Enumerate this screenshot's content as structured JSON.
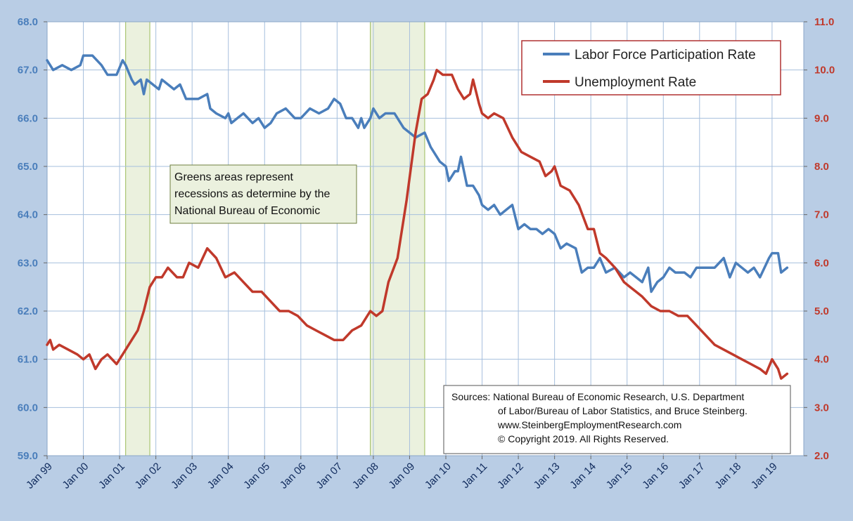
{
  "chart_data": {
    "type": "line",
    "y_left": {
      "min": 59,
      "max": 68,
      "ticks": [
        "59.0",
        "60.0",
        "61.0",
        "62.0",
        "63.0",
        "64.0",
        "65.0",
        "66.0",
        "67.0",
        "68.0"
      ],
      "color": "#4a7ebb"
    },
    "y_right": {
      "min": 2,
      "max": 11,
      "ticks": [
        "2.0",
        "3.0",
        "4.0",
        "5.0",
        "6.0",
        "7.0",
        "8.0",
        "9.0",
        "10.0",
        "11.0"
      ],
      "color": "#c0392b"
    },
    "x_ticks": [
      "Jan 99",
      "Jan 00",
      "Jan 01",
      "Jan 02",
      "Jan 03",
      "Jan 04",
      "Jan 05",
      "Jan 06",
      "Jan 07",
      "Jan 08",
      "Jan 09",
      "Jan 10",
      "Jan 11",
      "Jan 12",
      "Jan 13",
      "Jan 14",
      "Jan 15",
      "Jan 16",
      "Jan 17",
      "Jan 18",
      "Jan 19"
    ],
    "grid": true,
    "recessions": [
      {
        "start": "2001-03",
        "end": "2001-11"
      },
      {
        "start": "2007-12",
        "end": "2009-06"
      }
    ],
    "series": [
      {
        "name": "Labor Force Participation Rate",
        "axis": "left",
        "color": "#4a7ebb",
        "points": [
          [
            "1999-01",
            67.2
          ],
          [
            "1999-03",
            67.0
          ],
          [
            "1999-06",
            67.1
          ],
          [
            "1999-09",
            67.0
          ],
          [
            "1999-12",
            67.1
          ],
          [
            "2000-01",
            67.3
          ],
          [
            "2000-04",
            67.3
          ],
          [
            "2000-07",
            67.1
          ],
          [
            "2000-09",
            66.9
          ],
          [
            "2000-12",
            66.9
          ],
          [
            "2001-02",
            67.2
          ],
          [
            "2001-03",
            67.1
          ],
          [
            "2001-05",
            66.8
          ],
          [
            "2001-06",
            66.7
          ],
          [
            "2001-08",
            66.8
          ],
          [
            "2001-09",
            66.5
          ],
          [
            "2001-10",
            66.8
          ],
          [
            "2001-12",
            66.7
          ],
          [
            "2002-02",
            66.6
          ],
          [
            "2002-03",
            66.8
          ],
          [
            "2002-05",
            66.7
          ],
          [
            "2002-07",
            66.6
          ],
          [
            "2002-09",
            66.7
          ],
          [
            "2002-11",
            66.4
          ],
          [
            "2003-01",
            66.4
          ],
          [
            "2003-03",
            66.4
          ],
          [
            "2003-06",
            66.5
          ],
          [
            "2003-07",
            66.2
          ],
          [
            "2003-09",
            66.1
          ],
          [
            "2003-12",
            66.0
          ],
          [
            "2004-01",
            66.1
          ],
          [
            "2004-02",
            65.9
          ],
          [
            "2004-04",
            66.0
          ],
          [
            "2004-06",
            66.1
          ],
          [
            "2004-09",
            65.9
          ],
          [
            "2004-11",
            66.0
          ],
          [
            "2005-01",
            65.8
          ],
          [
            "2005-03",
            65.9
          ],
          [
            "2005-05",
            66.1
          ],
          [
            "2005-08",
            66.2
          ],
          [
            "2005-11",
            66.0
          ],
          [
            "2006-01",
            66.0
          ],
          [
            "2006-04",
            66.2
          ],
          [
            "2006-07",
            66.1
          ],
          [
            "2006-10",
            66.2
          ],
          [
            "2006-12",
            66.4
          ],
          [
            "2007-02",
            66.3
          ],
          [
            "2007-04",
            66.0
          ],
          [
            "2007-06",
            66.0
          ],
          [
            "2007-08",
            65.8
          ],
          [
            "2007-09",
            66.0
          ],
          [
            "2007-10",
            65.8
          ],
          [
            "2007-12",
            66.0
          ],
          [
            "2008-01",
            66.2
          ],
          [
            "2008-03",
            66.0
          ],
          [
            "2008-05",
            66.1
          ],
          [
            "2008-08",
            66.1
          ],
          [
            "2008-11",
            65.8
          ],
          [
            "2009-01",
            65.7
          ],
          [
            "2009-03",
            65.6
          ],
          [
            "2009-06",
            65.7
          ],
          [
            "2009-08",
            65.4
          ],
          [
            "2009-11",
            65.1
          ],
          [
            "2010-01",
            65.0
          ],
          [
            "2010-02",
            64.7
          ],
          [
            "2010-04",
            64.9
          ],
          [
            "2010-05",
            64.9
          ],
          [
            "2010-06",
            65.2
          ],
          [
            "2010-08",
            64.6
          ],
          [
            "2010-10",
            64.6
          ],
          [
            "2010-12",
            64.4
          ],
          [
            "2011-01",
            64.2
          ],
          [
            "2011-03",
            64.1
          ],
          [
            "2011-05",
            64.2
          ],
          [
            "2011-07",
            64.0
          ],
          [
            "2011-09",
            64.1
          ],
          [
            "2011-11",
            64.2
          ],
          [
            "2012-01",
            63.7
          ],
          [
            "2012-03",
            63.8
          ],
          [
            "2012-05",
            63.7
          ],
          [
            "2012-07",
            63.7
          ],
          [
            "2012-09",
            63.6
          ],
          [
            "2012-11",
            63.7
          ],
          [
            "2013-01",
            63.6
          ],
          [
            "2013-03",
            63.3
          ],
          [
            "2013-05",
            63.4
          ],
          [
            "2013-08",
            63.3
          ],
          [
            "2013-10",
            62.8
          ],
          [
            "2013-12",
            62.9
          ],
          [
            "2014-02",
            62.9
          ],
          [
            "2014-04",
            63.1
          ],
          [
            "2014-06",
            62.8
          ],
          [
            "2014-09",
            62.9
          ],
          [
            "2014-12",
            62.7
          ],
          [
            "2015-02",
            62.8
          ],
          [
            "2015-04",
            62.7
          ],
          [
            "2015-06",
            62.6
          ],
          [
            "2015-08",
            62.9
          ],
          [
            "2015-09",
            62.4
          ],
          [
            "2015-11",
            62.6
          ],
          [
            "2016-01",
            62.7
          ],
          [
            "2016-03",
            62.9
          ],
          [
            "2016-05",
            62.8
          ],
          [
            "2016-08",
            62.8
          ],
          [
            "2016-10",
            62.7
          ],
          [
            "2016-12",
            62.9
          ],
          [
            "2017-03",
            62.9
          ],
          [
            "2017-06",
            62.9
          ],
          [
            "2017-09",
            63.1
          ],
          [
            "2017-11",
            62.7
          ],
          [
            "2018-01",
            63.0
          ],
          [
            "2018-03",
            62.9
          ],
          [
            "2018-05",
            62.8
          ],
          [
            "2018-07",
            62.9
          ],
          [
            "2018-09",
            62.7
          ],
          [
            "2018-12",
            63.1
          ],
          [
            "2019-01",
            63.2
          ],
          [
            "2019-03",
            63.2
          ],
          [
            "2019-04",
            62.8
          ],
          [
            "2019-06",
            62.9
          ]
        ]
      },
      {
        "name": "Unemployment Rate",
        "axis": "right",
        "color": "#c0392b",
        "points": [
          [
            "1999-01",
            4.3
          ],
          [
            "1999-02",
            4.4
          ],
          [
            "1999-03",
            4.2
          ],
          [
            "1999-05",
            4.3
          ],
          [
            "1999-08",
            4.2
          ],
          [
            "1999-11",
            4.1
          ],
          [
            "2000-01",
            4.0
          ],
          [
            "2000-03",
            4.1
          ],
          [
            "2000-05",
            3.8
          ],
          [
            "2000-07",
            4.0
          ],
          [
            "2000-09",
            4.1
          ],
          [
            "2000-12",
            3.9
          ],
          [
            "2001-03",
            4.2
          ],
          [
            "2001-05",
            4.4
          ],
          [
            "2001-07",
            4.6
          ],
          [
            "2001-09",
            5.0
          ],
          [
            "2001-11",
            5.5
          ],
          [
            "2002-01",
            5.7
          ],
          [
            "2002-03",
            5.7
          ],
          [
            "2002-05",
            5.9
          ],
          [
            "2002-08",
            5.7
          ],
          [
            "2002-10",
            5.7
          ],
          [
            "2002-12",
            6.0
          ],
          [
            "2003-03",
            5.9
          ],
          [
            "2003-06",
            6.3
          ],
          [
            "2003-09",
            6.1
          ],
          [
            "2003-12",
            5.7
          ],
          [
            "2004-03",
            5.8
          ],
          [
            "2004-06",
            5.6
          ],
          [
            "2004-09",
            5.4
          ],
          [
            "2004-12",
            5.4
          ],
          [
            "2005-03",
            5.2
          ],
          [
            "2005-06",
            5.0
          ],
          [
            "2005-09",
            5.0
          ],
          [
            "2005-12",
            4.9
          ],
          [
            "2006-03",
            4.7
          ],
          [
            "2006-06",
            4.6
          ],
          [
            "2006-09",
            4.5
          ],
          [
            "2006-12",
            4.4
          ],
          [
            "2007-03",
            4.4
          ],
          [
            "2007-06",
            4.6
          ],
          [
            "2007-09",
            4.7
          ],
          [
            "2007-12",
            5.0
          ],
          [
            "2008-02",
            4.9
          ],
          [
            "2008-04",
            5.0
          ],
          [
            "2008-06",
            5.6
          ],
          [
            "2008-09",
            6.1
          ],
          [
            "2008-12",
            7.3
          ],
          [
            "2009-03",
            8.7
          ],
          [
            "2009-05",
            9.4
          ],
          [
            "2009-07",
            9.5
          ],
          [
            "2009-09",
            9.8
          ],
          [
            "2009-10",
            10.0
          ],
          [
            "2009-12",
            9.9
          ],
          [
            "2010-03",
            9.9
          ],
          [
            "2010-05",
            9.6
          ],
          [
            "2010-07",
            9.4
          ],
          [
            "2010-09",
            9.5
          ],
          [
            "2010-10",
            9.8
          ],
          [
            "2010-12",
            9.3
          ],
          [
            "2011-01",
            9.1
          ],
          [
            "2011-03",
            9.0
          ],
          [
            "2011-05",
            9.1
          ],
          [
            "2011-08",
            9.0
          ],
          [
            "2011-11",
            8.6
          ],
          [
            "2012-02",
            8.3
          ],
          [
            "2012-05",
            8.2
          ],
          [
            "2012-08",
            8.1
          ],
          [
            "2012-10",
            7.8
          ],
          [
            "2012-12",
            7.9
          ],
          [
            "2013-01",
            8.0
          ],
          [
            "2013-03",
            7.6
          ],
          [
            "2013-06",
            7.5
          ],
          [
            "2013-09",
            7.2
          ],
          [
            "2013-12",
            6.7
          ],
          [
            "2014-02",
            6.7
          ],
          [
            "2014-04",
            6.2
          ],
          [
            "2014-06",
            6.1
          ],
          [
            "2014-09",
            5.9
          ],
          [
            "2014-12",
            5.6
          ],
          [
            "2015-02",
            5.5
          ],
          [
            "2015-04",
            5.4
          ],
          [
            "2015-06",
            5.3
          ],
          [
            "2015-09",
            5.1
          ],
          [
            "2015-12",
            5.0
          ],
          [
            "2016-03",
            5.0
          ],
          [
            "2016-06",
            4.9
          ],
          [
            "2016-09",
            4.9
          ],
          [
            "2016-12",
            4.7
          ],
          [
            "2017-03",
            4.5
          ],
          [
            "2017-06",
            4.3
          ],
          [
            "2017-09",
            4.2
          ],
          [
            "2017-12",
            4.1
          ],
          [
            "2018-03",
            4.0
          ],
          [
            "2018-06",
            3.9
          ],
          [
            "2018-09",
            3.8
          ],
          [
            "2018-11",
            3.7
          ],
          [
            "2019-01",
            4.0
          ],
          [
            "2019-03",
            3.8
          ],
          [
            "2019-04",
            3.6
          ],
          [
            "2019-06",
            3.7
          ]
        ]
      }
    ],
    "legend": {
      "position": "top-right",
      "items": [
        "Labor Force Participation Rate",
        "Unemployment Rate"
      ]
    }
  },
  "note": {
    "line1": "Greens areas represent",
    "line2": "recessions as determine  by the",
    "line3": "National  Bureau  of Economic"
  },
  "sources": {
    "line1": "Sources: National Bureau of Economic Research,  U.S. Department",
    "line2": "of Labor/Bureau of Labor Statistics, and Bruce Steinberg.",
    "line3": "www.SteinbergEmploymentResearch.com",
    "line4": "© Copyright  2019. All Rights Reserved."
  },
  "colors": {
    "background": "#b9cde5",
    "plot_bg": "#ffffff",
    "recession_fill": "#ebf1de",
    "recession_stroke": "#9bbb59",
    "grid": "#a6bfdd"
  }
}
